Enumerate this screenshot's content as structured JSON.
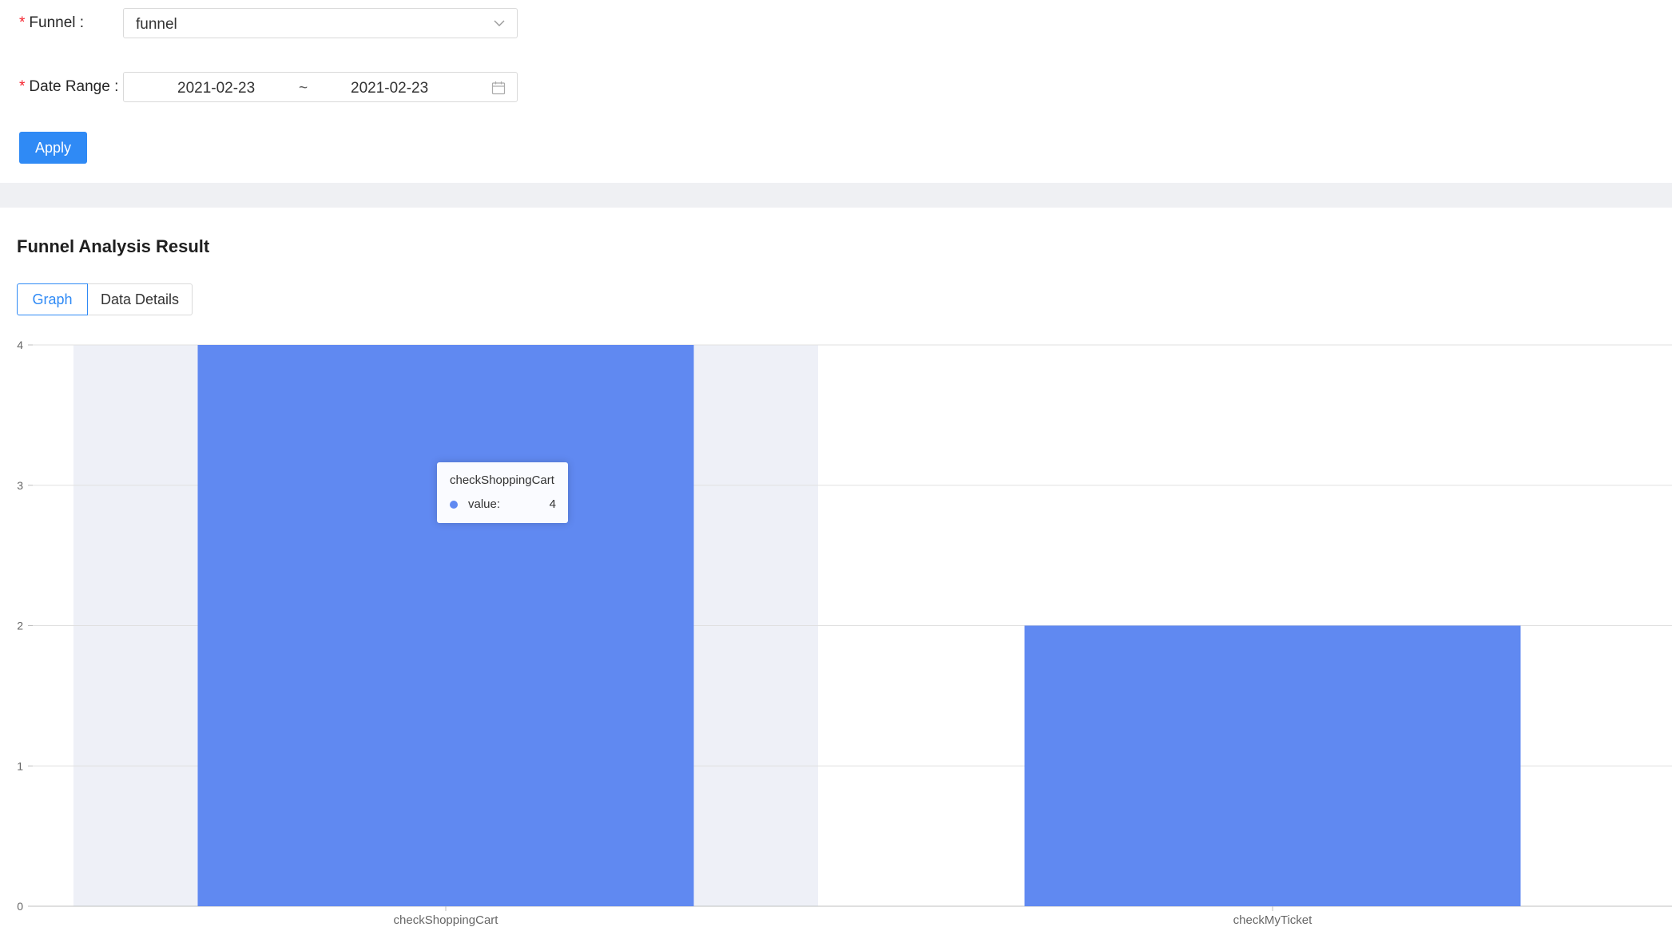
{
  "form": {
    "funnel_label": "Funnel",
    "funnel_value": "funnel",
    "date_label": "Date Range",
    "date_start": "2021-02-23",
    "date_separator": "~",
    "date_end": "2021-02-23",
    "required_mark": "*",
    "apply_label": "Apply"
  },
  "result": {
    "title": "Funnel Analysis Result",
    "tabs": [
      {
        "label": "Graph",
        "active": true
      },
      {
        "label": "Data Details",
        "active": false
      }
    ]
  },
  "tooltip": {
    "title": "checkShoppingCart",
    "series_name": "value:",
    "value": "4"
  },
  "colors": {
    "accent": "#2f8af5",
    "bar": "#6089f1",
    "hover_band": "#eef0f7",
    "grid": "#e0e0e0"
  },
  "chart_data": {
    "type": "bar",
    "categories": [
      "checkShoppingCart",
      "checkMyTicket"
    ],
    "values": [
      4,
      2
    ],
    "ylim": [
      0,
      4
    ],
    "yticks": [
      0,
      1,
      2,
      3,
      4
    ],
    "grid": true,
    "highlighted_category": "checkShoppingCart"
  }
}
